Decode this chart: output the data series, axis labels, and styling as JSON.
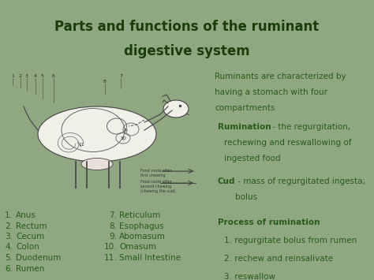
{
  "bg_color": "#8fa882",
  "title_line1": "Parts and functions of the ruminant",
  "title_line2": "digestive system",
  "title_color": "#1a3d0a",
  "title_bg": "#c2d4b5",
  "title_border": "#3a5a2a",
  "right_top_text_lines": [
    "Ruminants are characterized by",
    "having a stomach with four",
    "compartments"
  ],
  "right_box_bg": "#c8dbb8",
  "right_box_border": "#3a5a2a",
  "text_color": "#2a5a1a",
  "left_list_col1": [
    [
      "1.",
      "Anus"
    ],
    [
      "2.",
      "Rectum"
    ],
    [
      "3.",
      "Cecum"
    ],
    [
      "4.",
      "Colon"
    ],
    [
      "5.",
      "Duodenum"
    ],
    [
      "6.",
      "Rumen"
    ]
  ],
  "left_list_col2": [
    [
      "7.",
      "Reticulum"
    ],
    [
      "8.",
      "Esophagus"
    ],
    [
      "9.",
      "Abomasum"
    ],
    [
      "10.",
      "Omasum"
    ],
    [
      "11.",
      "Small Intestine"
    ]
  ],
  "cow_panel_bg": "#f8f8f4",
  "cow_panel_border": "#cccccc"
}
